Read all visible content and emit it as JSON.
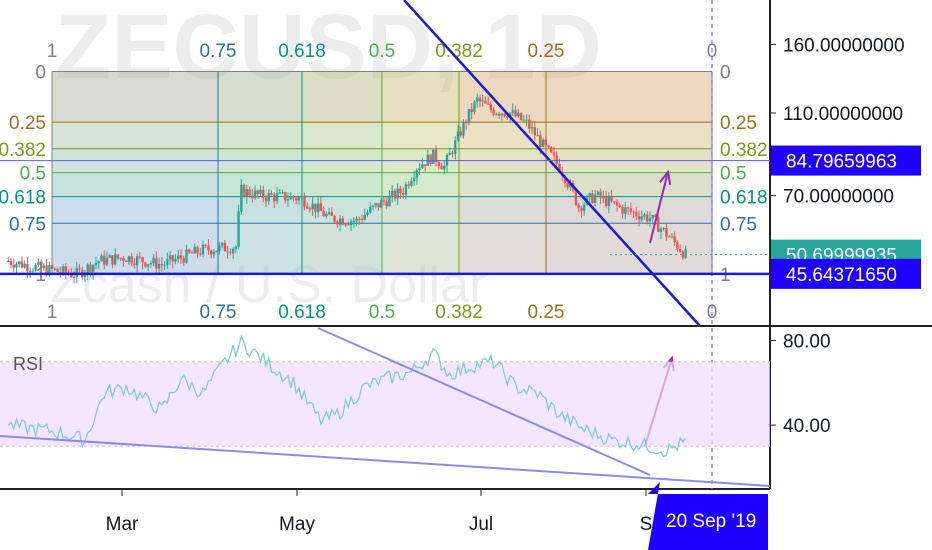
{
  "watermark": {
    "symbol": "ZECUSD, 1D",
    "description": "Zcash / U.S. Dollar"
  },
  "colors": {
    "up": "#26a69a",
    "down": "#ef5350",
    "trendline": "#1a1ad6",
    "support": "#1a1ad6",
    "arrow": "#9c27b0",
    "rsi_line": "#7fc9e2",
    "rsi_band": "#efdcff",
    "rsi_trend": "#8c8ce8",
    "price_tag_blue": "#1f00ff",
    "price_tag_teal": "#26a69a",
    "date_tag": "#1f00ff"
  },
  "price_pane": {
    "y_ticks": [
      "160.00000000",
      "110.00000000",
      "70.00000000"
    ],
    "tags": [
      {
        "label": "84.79659963",
        "value": 84.79659963,
        "style": "blue"
      },
      {
        "label": "50.69999935",
        "value": 50.69999935,
        "style": "teal"
      },
      {
        "label": "45.64371650",
        "value": 45.6437165,
        "style": "blue"
      }
    ],
    "fib_horizontal_levels": [
      {
        "label": "0",
        "ratio": 0,
        "color": "#808080"
      },
      {
        "label": "0.25",
        "ratio": 0.25,
        "color": "#a0701c"
      },
      {
        "label": "0.382",
        "ratio": 0.382,
        "color": "#7a9a1a"
      },
      {
        "label": "0.5",
        "ratio": 0.5,
        "color": "#4caf50"
      },
      {
        "label": "0.618",
        "ratio": 0.618,
        "color": "#009688"
      },
      {
        "label": "0.75",
        "ratio": 0.75,
        "color": "#2f6fa8"
      },
      {
        "label": "1",
        "ratio": 1,
        "color": "#808080"
      }
    ],
    "fib_time_zones": [
      {
        "label": "1",
        "color": "#808080"
      },
      {
        "label": "0.75",
        "color": "#2f6fa8"
      },
      {
        "label": "0.618",
        "color": "#009688"
      },
      {
        "label": "0.5",
        "color": "#4caf50"
      },
      {
        "label": "0.382",
        "color": "#7a9a1a"
      },
      {
        "label": "0.25",
        "color": "#a0701c"
      },
      {
        "label": "0",
        "color": "#808080"
      }
    ]
  },
  "rsi_pane": {
    "label": "RSI",
    "y_ticks": [
      "80.00",
      "40.00"
    ],
    "band": [
      30,
      70
    ]
  },
  "x_axis": {
    "ticks": [
      "Mar",
      "May",
      "Jul",
      "S"
    ],
    "crosshair_date": "20 Sep '19"
  },
  "chart_data": {
    "type": "candlestick",
    "symbol": "ZECUSD",
    "interval": "1D",
    "x_range": [
      "2019-01-05",
      "2019-09-30"
    ],
    "price_axis": {
      "scale": "log",
      "ticks": [
        160,
        110,
        70
      ],
      "range": [
        40,
        190
      ]
    },
    "close_series": [
      [
        "2019-01-08",
        49
      ],
      [
        "2019-01-20",
        47
      ],
      [
        "2019-02-02",
        45.5
      ],
      [
        "2019-02-10",
        49
      ],
      [
        "2019-02-20",
        50
      ],
      [
        "2019-03-05",
        48
      ],
      [
        "2019-03-20",
        52
      ],
      [
        "2019-04-01",
        53
      ],
      [
        "2019-04-03",
        72
      ],
      [
        "2019-04-10",
        70
      ],
      [
        "2019-04-25",
        69
      ],
      [
        "2019-05-05",
        62
      ],
      [
        "2019-05-15",
        61
      ],
      [
        "2019-05-22",
        66
      ],
      [
        "2019-06-01",
        72
      ],
      [
        "2019-06-06",
        82
      ],
      [
        "2019-06-12",
        87
      ],
      [
        "2019-06-16",
        82
      ],
      [
        "2019-06-20",
        93
      ],
      [
        "2019-06-24",
        106
      ],
      [
        "2019-06-28",
        118
      ],
      [
        "2019-07-03",
        112
      ],
      [
        "2019-07-10",
        110
      ],
      [
        "2019-07-16",
        104
      ],
      [
        "2019-07-22",
        92
      ],
      [
        "2019-07-29",
        80
      ],
      [
        "2019-08-04",
        66
      ],
      [
        "2019-08-10",
        70
      ],
      [
        "2019-08-20",
        65
      ],
      [
        "2019-08-30",
        62
      ],
      [
        "2019-09-07",
        55
      ],
      [
        "2019-09-12",
        50.7
      ]
    ],
    "fib_retracement": {
      "high": 138,
      "low": 45.64,
      "levels": [
        0,
        0.25,
        0.382,
        0.5,
        0.618,
        0.75,
        1
      ]
    },
    "fib_time_zones": [
      1,
      0.75,
      0.618,
      0.5,
      0.382,
      0.25,
      0
    ],
    "horizontal_lines": [
      84.79659963,
      45.6437165
    ],
    "last_price": 50.69999935,
    "rsi": {
      "range": [
        15,
        85
      ],
      "ticks": [
        80,
        40
      ],
      "band": [
        30,
        70
      ],
      "series": [
        [
          "2019-01-08",
          40
        ],
        [
          "2019-01-25",
          37
        ],
        [
          "2019-02-05",
          33
        ],
        [
          "2019-02-12",
          55
        ],
        [
          "2019-02-20",
          58
        ],
        [
          "2019-03-05",
          47
        ],
        [
          "2019-03-12",
          62
        ],
        [
          "2019-03-20",
          55
        ],
        [
          "2019-03-28",
          70
        ],
        [
          "2019-04-03",
          79
        ],
        [
          "2019-04-10",
          72
        ],
        [
          "2019-04-22",
          60
        ],
        [
          "2019-05-02",
          42
        ],
        [
          "2019-05-08",
          45
        ],
        [
          "2019-05-18",
          58
        ],
        [
          "2019-05-26",
          62
        ],
        [
          "2019-06-04",
          65
        ],
        [
          "2019-06-12",
          74
        ],
        [
          "2019-06-18",
          64
        ],
        [
          "2019-06-26",
          68
        ],
        [
          "2019-07-04",
          70
        ],
        [
          "2019-07-12",
          58
        ],
        [
          "2019-07-20",
          55
        ],
        [
          "2019-07-28",
          45
        ],
        [
          "2019-08-06",
          38
        ],
        [
          "2019-08-16",
          33
        ],
        [
          "2019-08-26",
          31
        ],
        [
          "2019-09-05",
          28
        ],
        [
          "2019-09-12",
          32
        ]
      ]
    }
  }
}
